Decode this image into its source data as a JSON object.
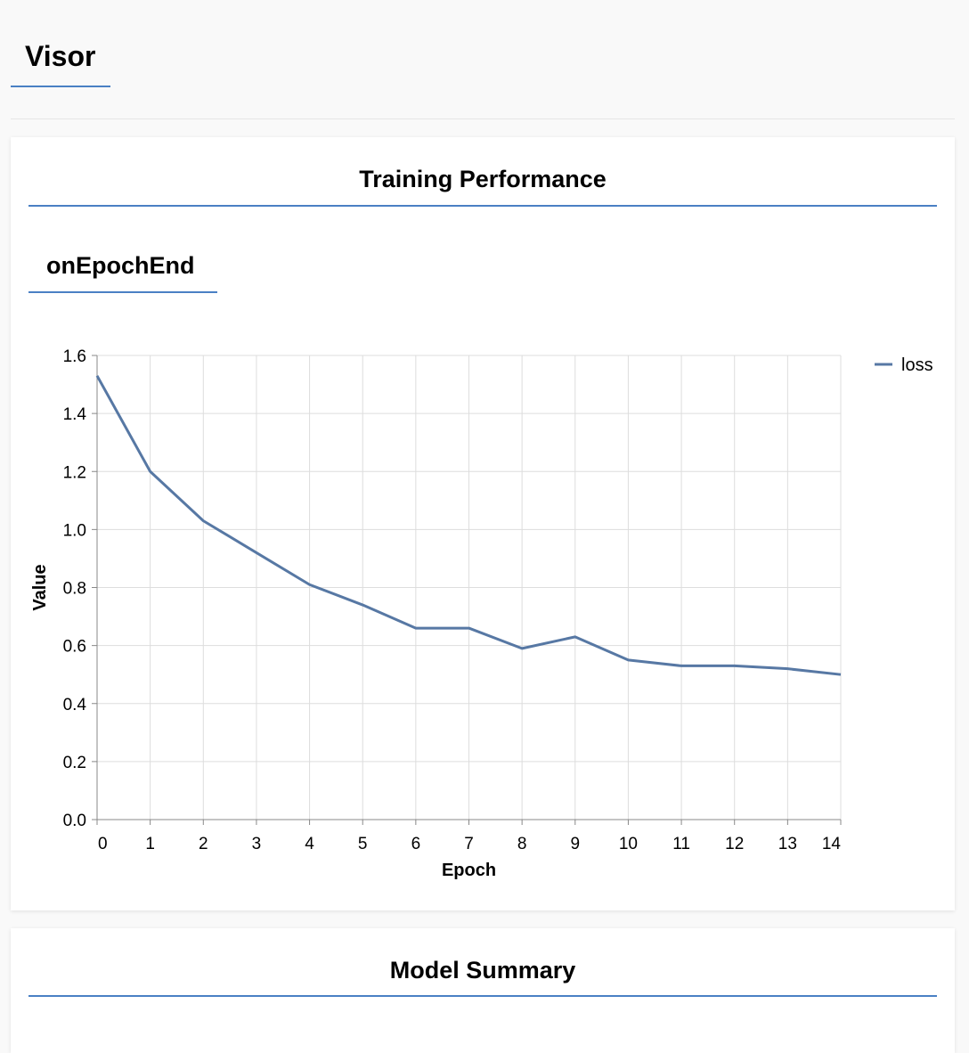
{
  "header": {
    "title": "Visor"
  },
  "training": {
    "heading": "Training Performance",
    "subheading": "onEpochEnd"
  },
  "model_summary": {
    "heading": "Model Summary"
  },
  "colors": {
    "accent": "#4a80c4",
    "series": "#5778a4",
    "grid": "#dddddd"
  },
  "chart_data": {
    "type": "line",
    "xlabel": "Epoch",
    "ylabel": "Value",
    "xlim": [
      0,
      14
    ],
    "ylim": [
      0,
      1.6
    ],
    "x_ticks": [
      0,
      1,
      2,
      3,
      4,
      5,
      6,
      7,
      8,
      9,
      10,
      11,
      12,
      13,
      14
    ],
    "y_ticks": [
      "0.0",
      "0.2",
      "0.4",
      "0.6",
      "0.8",
      "1.0",
      "1.2",
      "1.4",
      "1.6"
    ],
    "grid": true,
    "legend_position": "top-right",
    "x": [
      0,
      1,
      2,
      3,
      4,
      5,
      6,
      7,
      8,
      9,
      10,
      11,
      12,
      13,
      14
    ],
    "series": [
      {
        "name": "loss",
        "values": [
          1.53,
          1.2,
          1.03,
          0.92,
          0.81,
          0.74,
          0.66,
          0.66,
          0.59,
          0.63,
          0.55,
          0.53,
          0.53,
          0.52,
          0.5
        ]
      }
    ]
  }
}
